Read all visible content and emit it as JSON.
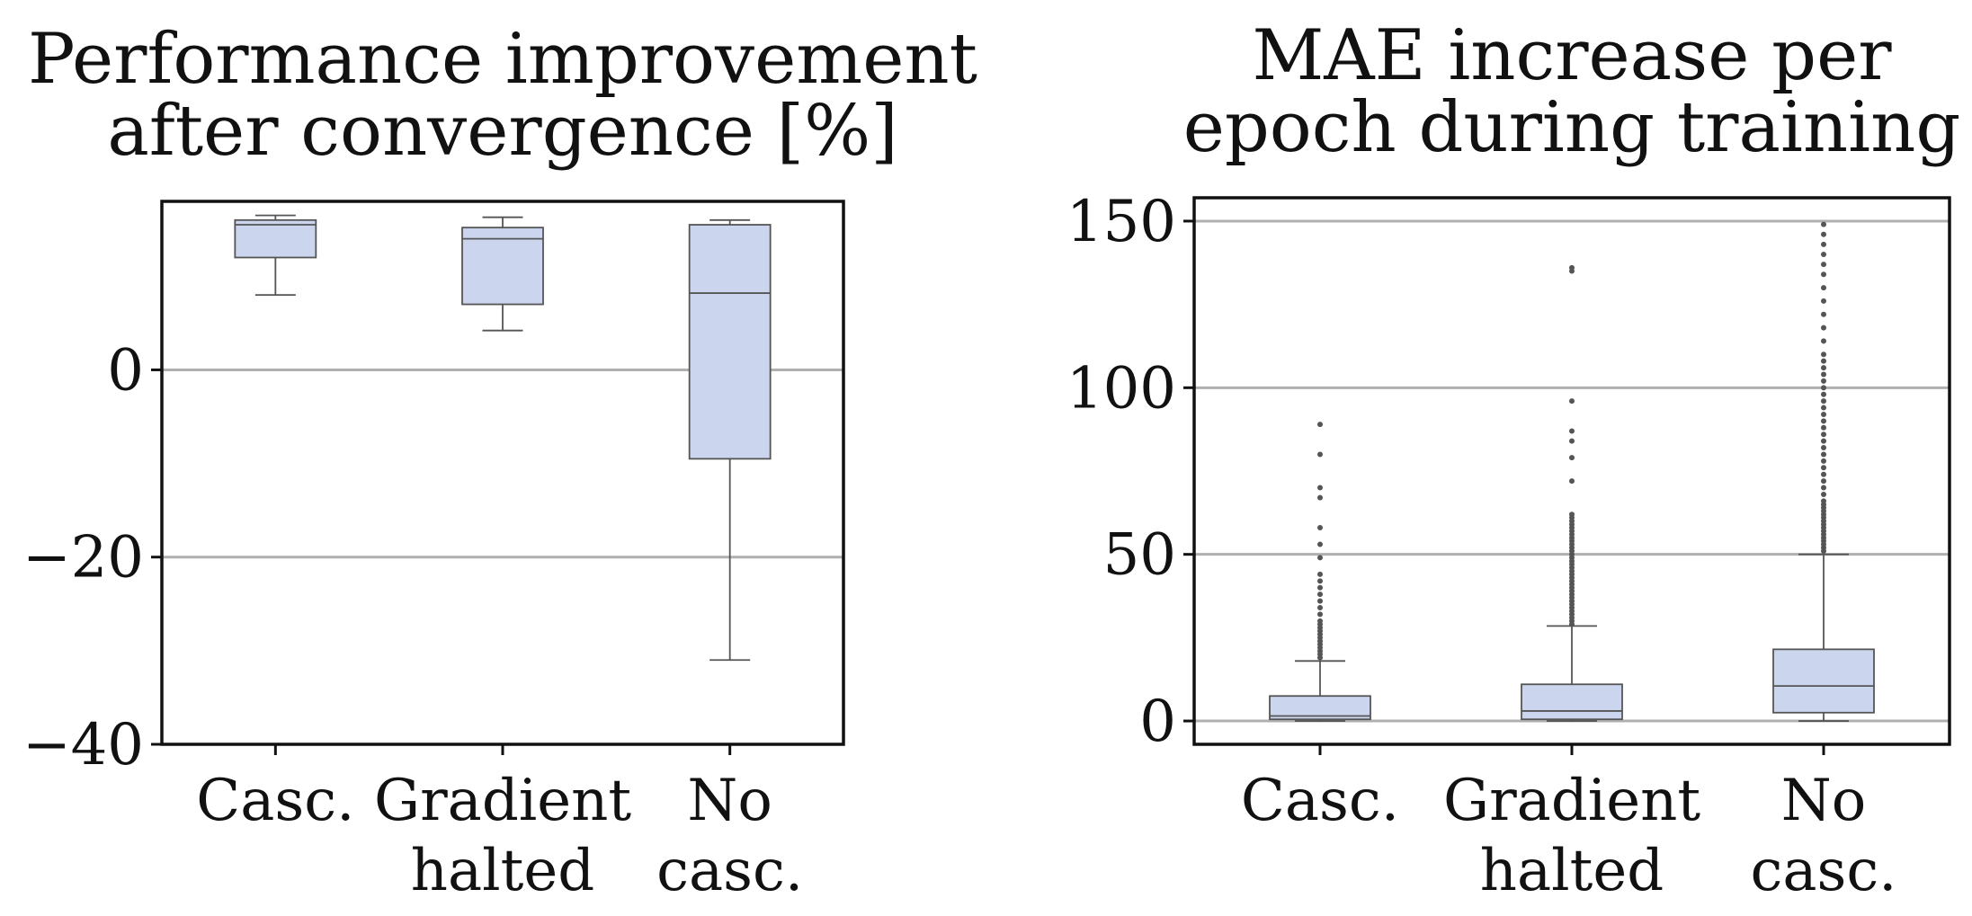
{
  "chart_data": [
    {
      "type": "box",
      "title_lines": [
        "Performance improvement",
        "after convergence [%]"
      ],
      "categories": [
        {
          "label_lines": [
            "Casc."
          ]
        },
        {
          "label_lines": [
            "Gradient",
            "halted"
          ]
        },
        {
          "label_lines": [
            "No",
            "casc."
          ]
        }
      ],
      "y_range": [
        -40,
        18
      ],
      "y_ticks": [
        -40,
        -20,
        0
      ],
      "y_tick_labels": [
        "−40",
        "−20",
        "0"
      ],
      "grid": true,
      "grid_color": "#b0b0b0",
      "box_fill": "#cbd5ee",
      "box_edge": "#555555",
      "boxes": [
        {
          "name": "Casc.",
          "whisker_low": 8,
          "q1": 12,
          "median": 15.5,
          "q3": 16,
          "whisker_high": 16.5,
          "outliers": []
        },
        {
          "name": "Gradient halted",
          "whisker_low": 4.2,
          "q1": 7,
          "median": 14,
          "q3": 15.2,
          "whisker_high": 16.3,
          "outliers": []
        },
        {
          "name": "No casc.",
          "whisker_low": -31,
          "q1": -9.5,
          "median": 8.2,
          "q3": 15.5,
          "whisker_high": 16,
          "outliers": []
        }
      ]
    },
    {
      "type": "box",
      "title_lines": [
        "MAE increase per",
        "epoch during training"
      ],
      "categories": [
        {
          "label_lines": [
            "Casc."
          ]
        },
        {
          "label_lines": [
            "Gradient",
            "halted"
          ]
        },
        {
          "label_lines": [
            "No",
            "casc."
          ]
        }
      ],
      "y_range": [
        -7,
        157
      ],
      "y_ticks": [
        0,
        50,
        100,
        150
      ],
      "y_tick_labels": [
        "0",
        "50",
        "100",
        "150"
      ],
      "grid": true,
      "grid_color": "#b0b0b0",
      "box_fill": "#cbd5ee",
      "box_edge": "#555555",
      "boxes": [
        {
          "name": "Casc.",
          "whisker_low": 0,
          "q1": 0.5,
          "median": 1.5,
          "q3": 7.5,
          "whisker_high": 18,
          "outliers": [
            19,
            20,
            21,
            22,
            23,
            24,
            25,
            26,
            27,
            28,
            29,
            30,
            32,
            34,
            36,
            38,
            40,
            42,
            44,
            49,
            53,
            58,
            67,
            70,
            80,
            89
          ]
        },
        {
          "name": "Gradient halted",
          "whisker_low": 0,
          "q1": 0.5,
          "median": 3,
          "q3": 11,
          "whisker_high": 28.5,
          "outliers": [
            29,
            30,
            31,
            32,
            33,
            34,
            35,
            36,
            37,
            38,
            39,
            40,
            41,
            42,
            43,
            44,
            45,
            46,
            47,
            48,
            49,
            50,
            51,
            52,
            53,
            54,
            55,
            56,
            57,
            58,
            59,
            60,
            61,
            62,
            72,
            79,
            84,
            87,
            96,
            135,
            136
          ]
        },
        {
          "name": "No casc.",
          "whisker_low": 0,
          "q1": 2.5,
          "median": 10.5,
          "q3": 21.5,
          "whisker_high": 50,
          "outliers": [
            51,
            52,
            53,
            54,
            55,
            56,
            57,
            58,
            59,
            60,
            61,
            62,
            63,
            64,
            65,
            66,
            68,
            70,
            72,
            74,
            76,
            78,
            80,
            82,
            84,
            86,
            88,
            90,
            92,
            94,
            96,
            98,
            100,
            102,
            104,
            106,
            108,
            110,
            114,
            118,
            122,
            126,
            130,
            134,
            137,
            140,
            143,
            146,
            149
          ]
        }
      ]
    }
  ]
}
